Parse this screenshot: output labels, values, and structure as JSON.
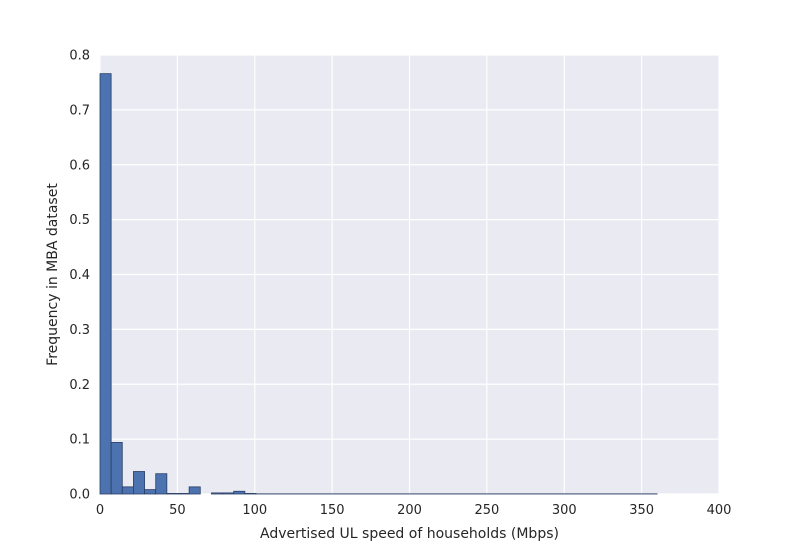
{
  "chart_data": {
    "type": "bar",
    "title": "",
    "xlabel": "Advertised UL speed of households (Mbps)",
    "ylabel": "Frequency in MBA dataset",
    "xlim": [
      0,
      400
    ],
    "ylim": [
      0,
      0.8
    ],
    "x_ticks": [
      "0",
      "50",
      "100",
      "150",
      "200",
      "250",
      "300",
      "350",
      "400"
    ],
    "y_ticks": [
      "0.0",
      "0.1",
      "0.2",
      "0.3",
      "0.4",
      "0.5",
      "0.6",
      "0.7",
      "0.8"
    ],
    "grid": true,
    "bins": [
      {
        "x0": 0,
        "x1": 7.2,
        "value": 0.766
      },
      {
        "x0": 7.2,
        "x1": 14.4,
        "value": 0.094
      },
      {
        "x0": 14.4,
        "x1": 21.6,
        "value": 0.013
      },
      {
        "x0": 21.6,
        "x1": 28.8,
        "value": 0.041
      },
      {
        "x0": 28.8,
        "x1": 36.0,
        "value": 0.008
      },
      {
        "x0": 36.0,
        "x1": 43.2,
        "value": 0.037
      },
      {
        "x0": 43.2,
        "x1": 50.4,
        "value": 0.001
      },
      {
        "x0": 50.4,
        "x1": 57.6,
        "value": 0.001
      },
      {
        "x0": 57.6,
        "x1": 64.8,
        "value": 0.013
      },
      {
        "x0": 64.8,
        "x1": 72.0,
        "value": 0.0
      },
      {
        "x0": 72.0,
        "x1": 79.2,
        "value": 0.002
      },
      {
        "x0": 79.2,
        "x1": 86.4,
        "value": 0.002
      },
      {
        "x0": 86.4,
        "x1": 93.6,
        "value": 0.005
      },
      {
        "x0": 93.6,
        "x1": 100.8,
        "value": 0.001
      },
      {
        "x0": 100.8,
        "x1": 360.0,
        "value": 0.0003
      }
    ],
    "colors": {
      "bar_fill": "#4c72b0",
      "bar_edge": "#2a3f66",
      "plot_background": "#eaeaf2",
      "grid": "#ffffff"
    }
  }
}
